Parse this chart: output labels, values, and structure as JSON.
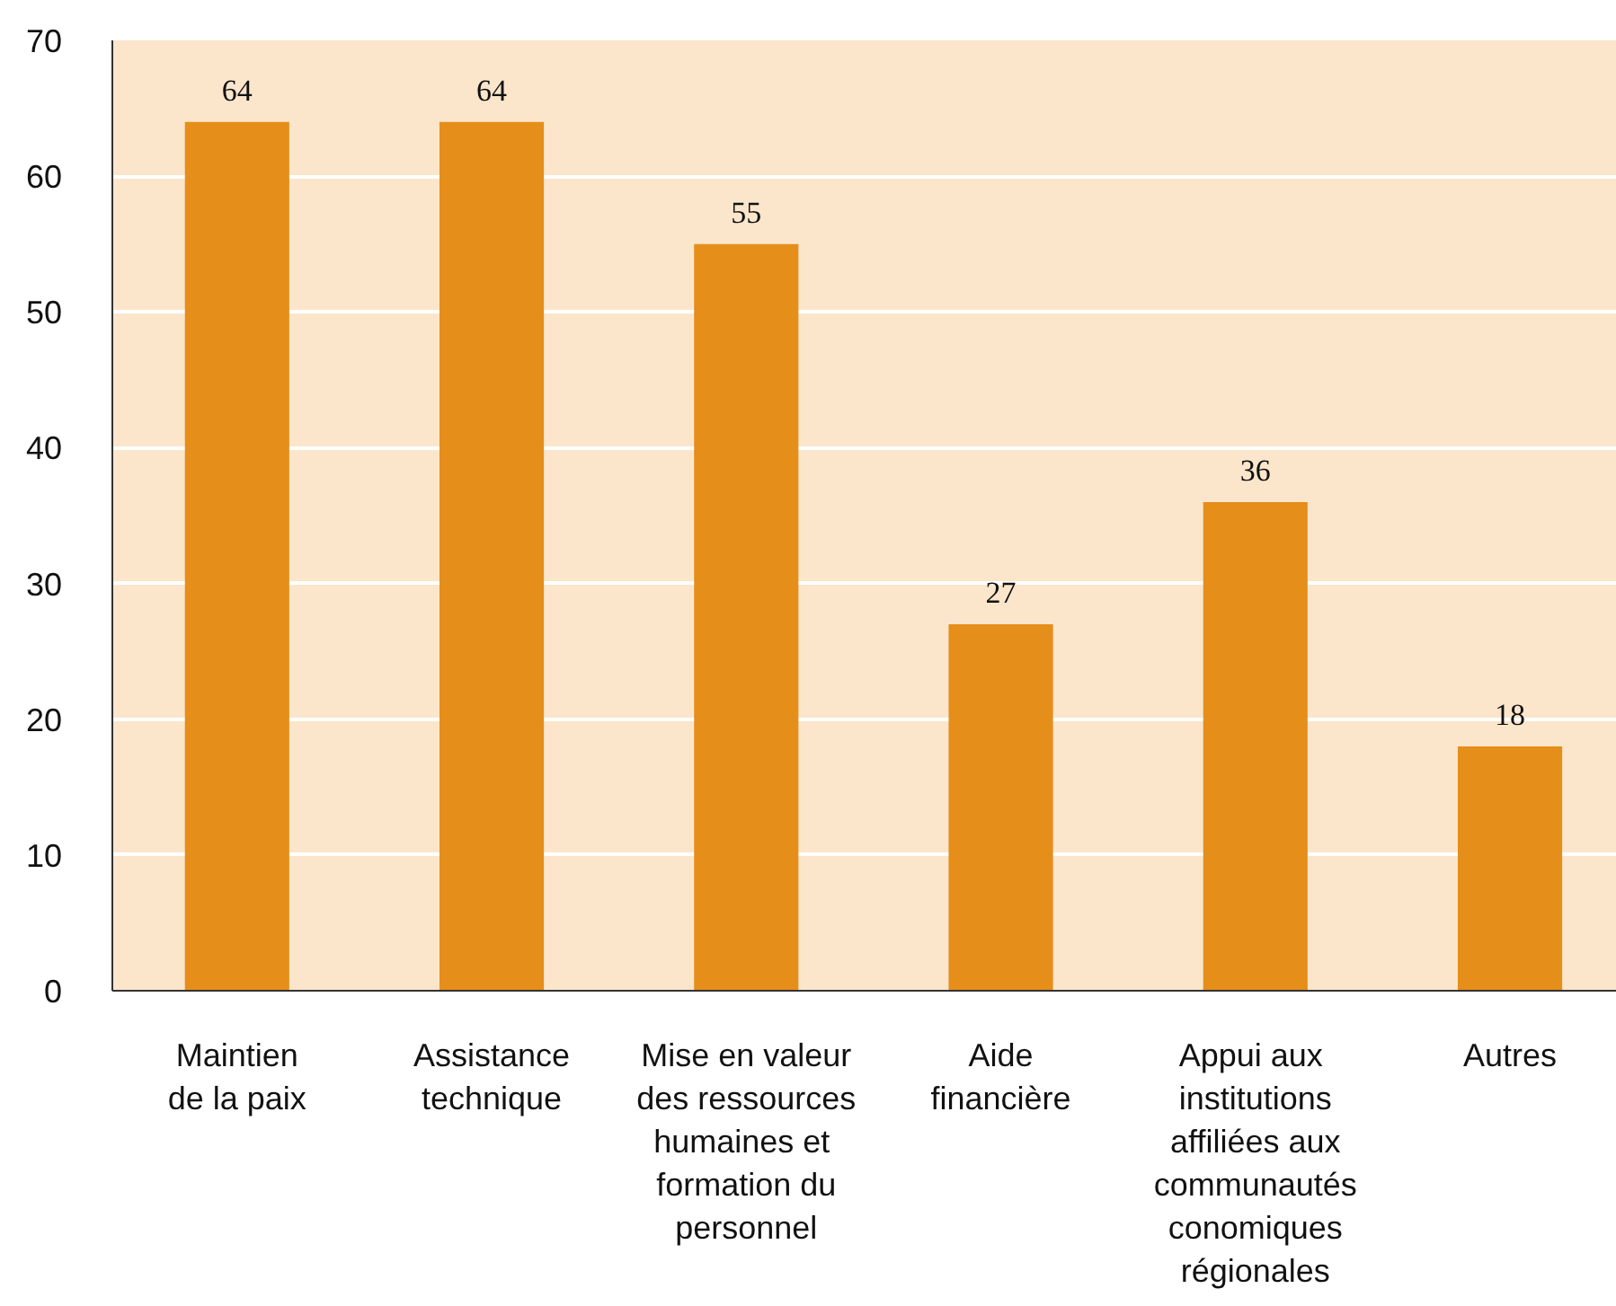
{
  "chart_data": {
    "type": "bar",
    "categories": [
      "Maintien\nde la paix",
      "Assistance\ntechnique",
      "Mise en valeur\ndes ressources\nhumaines  et\nformation du\npersonnel",
      "Aide\nfinancière",
      "Appui  aux\ninstitutions\naffiliées aux\ncommunautés\nconomiques\nrégionales",
      "Autres"
    ],
    "values": [
      64,
      64,
      55,
      27,
      36,
      18
    ],
    "color": "#e58e1a",
    "ylim": [
      0,
      70
    ],
    "yticks": [
      0,
      10,
      20,
      30,
      40,
      50,
      60,
      70
    ],
    "grid": "y",
    "data_labels": true
  }
}
